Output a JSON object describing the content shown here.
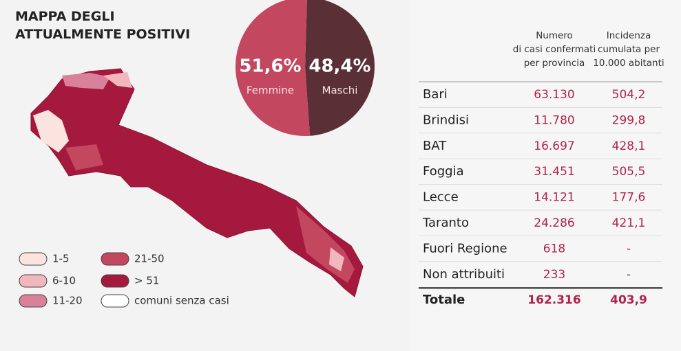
{
  "title": "MAPPA DEGLI\nATTUALMENTE POSITIVI",
  "chart_data": {
    "type": "pie",
    "series": [
      {
        "name": "Maschi",
        "color": "#5a3036",
        "values": [
          48.4
        ],
        "value_labels": [
          "48,4%"
        ]
      },
      {
        "name": "Femmine",
        "color": "#c2475f",
        "values": [
          51.6
        ],
        "value_labels": [
          "51,6%"
        ]
      }
    ]
  },
  "legend": [
    {
      "label": "1-5",
      "color": "#fbe3e0"
    },
    {
      "label": "6-10",
      "color": "#f2b6bd"
    },
    {
      "label": "11-20",
      "color": "#d9809a"
    },
    {
      "label": "21-50",
      "color": "#c2475f"
    },
    {
      "label": "> 51",
      "color": "#a5193e"
    },
    {
      "label": "comuni senza casi",
      "color": "#ffffff"
    }
  ],
  "table": {
    "header": [
      "Numero\ndi casi confermati\nper provincia",
      "Incidenza\ncumulata per\n10.000 abitanti"
    ],
    "rows": [
      [
        "Bari",
        "63.130",
        "504,2"
      ],
      [
        "Brindisi",
        "11.780",
        "299,8"
      ],
      [
        "BAT",
        "16.697",
        "428,1"
      ],
      [
        "Foggia",
        "31.451",
        "505,5"
      ],
      [
        "Lecce",
        "14.121",
        "177,6"
      ],
      [
        "Taranto",
        "24.286",
        "421,1"
      ],
      [
        "Fuori Regione",
        "618",
        "-"
      ],
      [
        "Non attribuiti",
        "233",
        "-"
      ]
    ],
    "total": [
      "Totale",
      "162.316",
      "403,9"
    ]
  }
}
